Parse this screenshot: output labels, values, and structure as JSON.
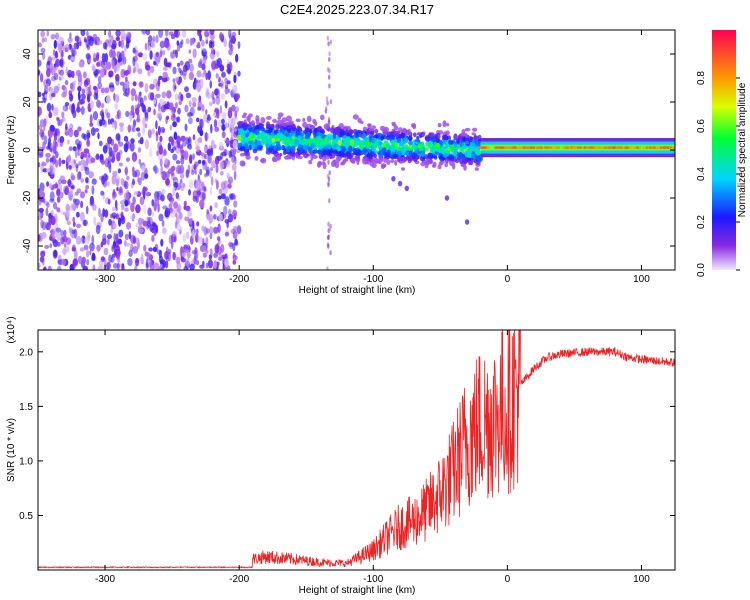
{
  "title": "C2E4.2025.223.07.34.R17",
  "colors": {
    "axis": "#000000",
    "snr_line": "#ee2222",
    "noise_dots": "#6a2bd6",
    "background": "#ffffff"
  },
  "chart_data": [
    {
      "type": "heatmap",
      "xlabel": "Height of straight line (km)",
      "ylabel": "Frequency (Hz)",
      "xlim": [
        -350,
        125
      ],
      "ylim": [
        -50,
        50
      ],
      "xticks": [
        -300,
        -200,
        -100,
        0,
        100
      ],
      "xtick_labels": [
        "-300",
        "-200",
        "-100",
        "0",
        "100"
      ],
      "yticks": [
        -40,
        -20,
        0,
        20,
        40
      ],
      "ytick_labels": [
        "-40",
        "-20",
        "0",
        "20",
        "40"
      ],
      "colorbar": {
        "label": "Normalized spectral amplitude",
        "range": [
          0,
          1
        ],
        "ticks": [
          0.0,
          0.2,
          0.4,
          0.6,
          0.8
        ],
        "tick_labels": [
          "0.0",
          "0.2",
          "0.4",
          "0.6",
          "0.8"
        ],
        "colormap": "rainbow (violet→blue→cyan→green→yellow→orange→red)"
      },
      "regions": [
        {
          "x_range": [
            -350,
            -200
          ],
          "y_range": [
            -50,
            50
          ],
          "description_level": 0.25
        },
        {
          "x_range": [
            -200,
            -20
          ],
          "center_freq": [
            5,
            0
          ],
          "spread_hz": [
            6,
            5
          ],
          "level": 0.45
        },
        {
          "x_range": [
            -20,
            125
          ],
          "center_freq": 1,
          "spread_hz": 2,
          "level": 0.9
        }
      ],
      "streaks": [
        {
          "x": -133,
          "y_range": [
            -50,
            50
          ]
        }
      ]
    },
    {
      "type": "line",
      "xlabel": "Height of straight line (km)",
      "ylabel": "SNR (10 * v/v)",
      "y_multiplier": "(x10⁴)",
      "xlim": [
        -350,
        125
      ],
      "ylim": [
        0,
        2.2
      ],
      "xticks": [
        -300,
        -200,
        -100,
        0,
        100
      ],
      "xtick_labels": [
        "-300",
        "-200",
        "-100",
        "0",
        "100"
      ],
      "yticks": [
        0.5,
        1.0,
        1.5,
        2.0
      ],
      "ytick_labels": [
        "0.5",
        "1.0",
        "1.5",
        "2.0"
      ],
      "series": [
        {
          "x": [
            -350,
            -200,
            -190,
            -180,
            -160,
            -140,
            -120,
            -110,
            -100,
            -90,
            -80,
            -70,
            -60,
            -50,
            -40,
            -30,
            -20,
            -10,
            0,
            10,
            20,
            30,
            40,
            60,
            80,
            90,
            100,
            125
          ],
          "values": [
            0.02,
            0.02,
            0.1,
            0.12,
            0.1,
            0.07,
            0.06,
            0.12,
            0.18,
            0.3,
            0.4,
            0.45,
            0.55,
            0.7,
            0.9,
            1.2,
            1.35,
            1.4,
            1.5,
            1.7,
            1.85,
            1.95,
            1.98,
            2.0,
            2.0,
            1.95,
            1.93,
            1.9
          ]
        }
      ]
    }
  ]
}
